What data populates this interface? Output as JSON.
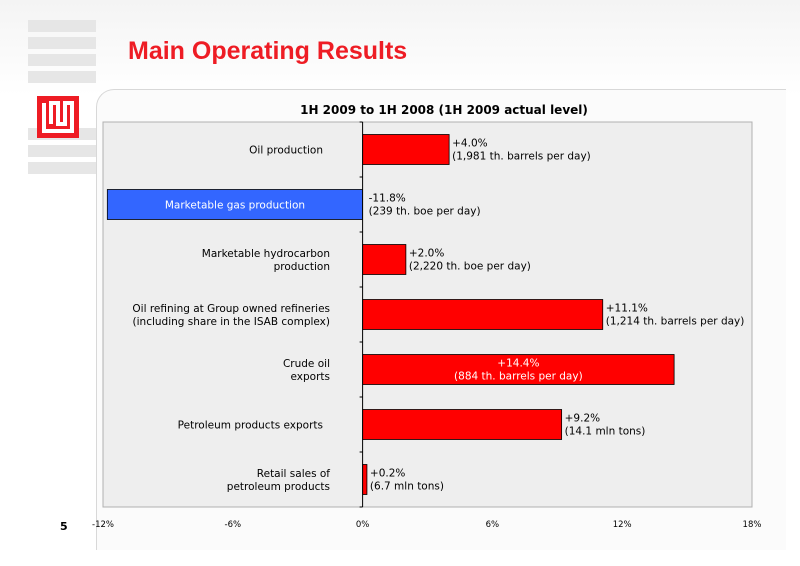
{
  "page": {
    "title": "Main Operating Results",
    "page_number": "5"
  },
  "colors": {
    "title": "#ee1c24",
    "bar_positive": "#ff0000",
    "bar_negative": "#3366ff",
    "plot_background": "#eeeeee"
  },
  "logo": {
    "icon": "lukoil-logo-icon"
  },
  "chart_data": {
    "type": "bar",
    "orientation": "horizontal",
    "title": "1H 2009 to 1H 2008 (1H 2009 actual level)",
    "xlim": [
      -12,
      18
    ],
    "x_ticks": [
      "-12%",
      "-6%",
      "0%",
      "6%",
      "12%",
      "18%"
    ],
    "grid": false,
    "categories": [
      [
        "Oil production"
      ],
      [
        "Marketable gas production"
      ],
      [
        "Marketable hydrocarbon",
        "production"
      ],
      [
        "Oil refining at Group owned refineries",
        "(including share in the ISAB complex)"
      ],
      [
        "Crude oil",
        "exports"
      ],
      [
        "Petroleum products exports"
      ],
      [
        "Retail sales of",
        "petroleum products"
      ]
    ],
    "values": [
      4.0,
      -11.8,
      2.0,
      11.1,
      14.4,
      9.2,
      0.2
    ],
    "data_labels": [
      [
        "+4.0%",
        "(1,981 th. barrels per day)"
      ],
      [
        "-11.8%",
        "(239 th. boe per day)"
      ],
      [
        "+2.0%",
        "(2,220 th. boe per day)"
      ],
      [
        "+11.1%",
        "(1,214 th. barrels per day)"
      ],
      [
        "+14.4%",
        "(884 th. barrels per day)"
      ],
      [
        "+9.2%",
        "(14.1 mln tons)"
      ],
      [
        "+0.2%",
        "(6.7 mln tons)"
      ]
    ]
  }
}
